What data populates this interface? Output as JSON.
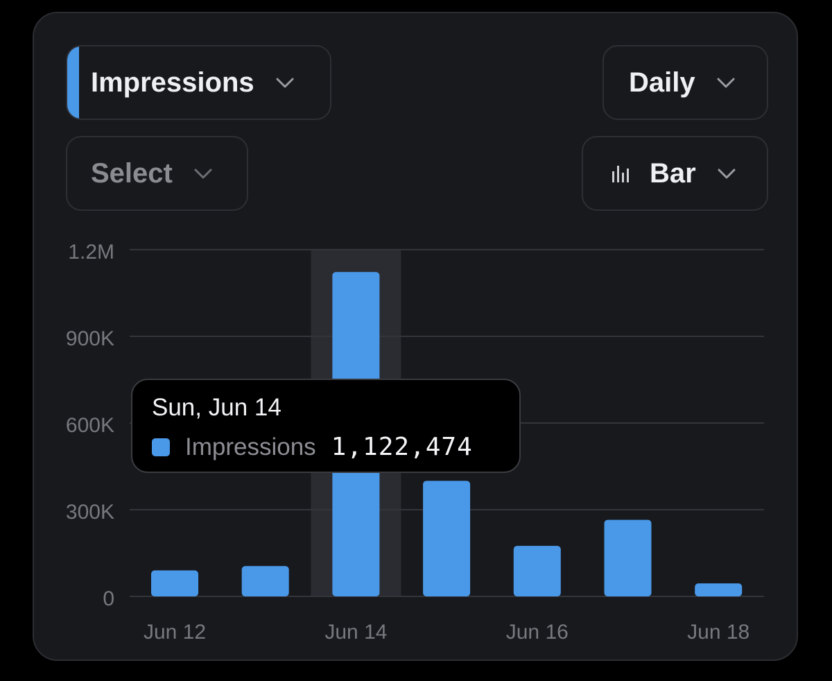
{
  "controls": {
    "metric": "Impressions",
    "period": "Daily",
    "select": "Select",
    "chart_type": "Bar"
  },
  "colors": {
    "accent": "#4a99e9",
    "background": "#18191d",
    "highlight_band": "#2b2c31"
  },
  "icons": {
    "chevron": "chevron-down-icon",
    "chart_type": "bar-chart-icon"
  },
  "tooltip": {
    "date": "Sun, Jun 14",
    "series": "Impressions",
    "value": "1,122,474"
  },
  "chart_data": {
    "type": "bar",
    "categories": [
      "Jun 12",
      "Jun 13",
      "Jun 14",
      "Jun 15",
      "Jun 16",
      "Jun 17",
      "Jun 18"
    ],
    "x_tick_labels": [
      "Jun 12",
      "Jun 14",
      "Jun 16",
      "Jun 18"
    ],
    "series": [
      {
        "name": "Impressions",
        "values": [
          90000,
          105000,
          1122474,
          400000,
          175000,
          265000,
          45000
        ]
      }
    ],
    "y_ticks": [
      0,
      300000,
      600000,
      900000,
      1200000
    ],
    "y_tick_labels": [
      "0",
      "300K",
      "600K",
      "900K",
      "1.2M"
    ],
    "ylim": [
      0,
      1200000
    ],
    "highlighted_category": "Jun 14",
    "grid": true
  }
}
